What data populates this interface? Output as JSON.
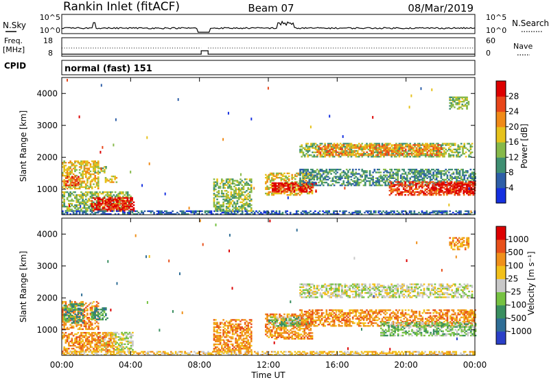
{
  "header": {
    "site": "Rankin Inlet (fitACF)",
    "beam": "Beam 07",
    "date": "08/Mar/2019"
  },
  "aux": {
    "nsky_label": "N.Sky",
    "nsearch_label": "N.Search",
    "freq_label_top": "Freq.",
    "freq_label_bottom": "[MHz]",
    "nave_label": "Nave",
    "cpid_label": "CPID",
    "cpid_value": "normal (fast) 151",
    "noise_ticks_left": [
      "10^5",
      "10^0"
    ],
    "noise_ticks_right": [
      "10^5",
      "10^0"
    ],
    "freq_ticks_left": [
      "18",
      "8"
    ],
    "nave_ticks_right": [
      "60",
      "0"
    ]
  },
  "chart_data": [
    {
      "type": "heatmap",
      "name": "power",
      "ylabel": "Slant Range [km]",
      "yticks": [
        "1000",
        "2000",
        "3000",
        "4000"
      ],
      "ylim": [
        200,
        4500
      ],
      "xlim": [
        0,
        24
      ],
      "xticks": [
        "00:00",
        "04:00",
        "08:00",
        "12:00",
        "16:00",
        "20:00",
        "00:00"
      ],
      "colorbar": {
        "label": "Power [dB]",
        "ticks": [
          "4",
          "8",
          "12",
          "16",
          "20",
          "24",
          "28"
        ],
        "colors": [
          "#1530e0",
          "#2e5fa8",
          "#3f8f72",
          "#86b94a",
          "#e6c21c",
          "#f08a18",
          "#e8461a",
          "#dd0000"
        ]
      },
      "bands": [
        {
          "t0": 0.0,
          "t1": 2.1,
          "r0": 1000,
          "r1": 1900,
          "level": 4
        },
        {
          "t0": 0.2,
          "t1": 1.0,
          "r0": 1100,
          "r1": 1400,
          "level": 6
        },
        {
          "t0": 0.0,
          "t1": 4.0,
          "r0": 300,
          "r1": 900,
          "level": 3
        },
        {
          "t0": 1.7,
          "t1": 4.2,
          "r0": 300,
          "r1": 750,
          "level": 7
        },
        {
          "t0": 2.4,
          "t1": 3.8,
          "r0": 350,
          "r1": 650,
          "level": 6
        },
        {
          "t0": 1.8,
          "t1": 2.6,
          "r0": 1500,
          "r1": 1700,
          "level": 3
        },
        {
          "t0": 2.5,
          "t1": 3.2,
          "r0": 1200,
          "r1": 1400,
          "level": 4
        },
        {
          "t0": 0.0,
          "t1": 24.0,
          "r0": 200,
          "r1": 330,
          "level": 1
        },
        {
          "t0": 8.8,
          "t1": 11.0,
          "r0": 300,
          "r1": 1300,
          "level": 3
        },
        {
          "t0": 11.8,
          "t1": 14.5,
          "r0": 800,
          "r1": 1500,
          "level": 4
        },
        {
          "t0": 12.2,
          "t1": 14.8,
          "r0": 900,
          "r1": 1200,
          "level": 7
        },
        {
          "t0": 13.8,
          "t1": 23.8,
          "r0": 2000,
          "r1": 2450,
          "level": 3
        },
        {
          "t0": 14.8,
          "t1": 22.0,
          "r0": 2050,
          "r1": 2400,
          "level": 5
        },
        {
          "t0": 13.8,
          "t1": 24.0,
          "r0": 1100,
          "r1": 1600,
          "level": 2
        },
        {
          "t0": 19.0,
          "t1": 24.0,
          "r0": 800,
          "r1": 1250,
          "level": 6
        },
        {
          "t0": 21.5,
          "t1": 24.0,
          "r0": 850,
          "r1": 1200,
          "level": 7
        },
        {
          "t0": 22.5,
          "t1": 23.6,
          "r0": 3500,
          "r1": 3900,
          "level": 3
        }
      ]
    },
    {
      "type": "heatmap",
      "name": "velocity",
      "ylabel": "Slant Range [km]",
      "yticks": [
        "1000",
        "2000",
        "3000",
        "4000"
      ],
      "ylim": [
        200,
        4500
      ],
      "xlim": [
        0,
        24
      ],
      "xticks": [
        "00:00",
        "04:00",
        "08:00",
        "12:00",
        "16:00",
        "20:00",
        "00:00"
      ],
      "xlabel": "Time UT",
      "colorbar": {
        "label": "Velocity [m s⁻¹]",
        "ticks": [
          "1000",
          "500",
          "100",
          "25",
          "-25",
          "-100",
          "-500",
          "-1000"
        ],
        "colors": [
          "#2a3fc8",
          "#2f6e96",
          "#3a8f60",
          "#76c242",
          "#c8c8c8",
          "#f2c01a",
          "#f0901a",
          "#e8501a",
          "#dd0000"
        ]
      },
      "bands": [
        {
          "t0": 0.0,
          "t1": 2.1,
          "r0": 1000,
          "r1": 1900,
          "level": 6
        },
        {
          "t0": 0.1,
          "t1": 1.2,
          "r0": 1200,
          "r1": 1800,
          "level": 2
        },
        {
          "t0": 1.7,
          "t1": 2.6,
          "r0": 1300,
          "r1": 1700,
          "level": 2
        },
        {
          "t0": 2.0,
          "t1": 4.1,
          "r0": 350,
          "r1": 900,
          "level": 4
        },
        {
          "t0": 0.0,
          "t1": 3.0,
          "r0": 300,
          "r1": 900,
          "level": 6
        },
        {
          "t0": 8.8,
          "t1": 11.0,
          "r0": 300,
          "r1": 1300,
          "level": 6
        },
        {
          "t0": 11.8,
          "t1": 14.5,
          "r0": 700,
          "r1": 1500,
          "level": 6
        },
        {
          "t0": 12.0,
          "t1": 14.5,
          "r0": 1100,
          "r1": 1400,
          "level": 3
        },
        {
          "t0": 13.8,
          "t1": 23.8,
          "r0": 2000,
          "r1": 2450,
          "level": 4
        },
        {
          "t0": 13.8,
          "t1": 24.0,
          "r0": 1100,
          "r1": 1600,
          "level": 6
        },
        {
          "t0": 18.5,
          "t1": 24.0,
          "r0": 800,
          "r1": 1250,
          "level": 3
        },
        {
          "t0": 0.0,
          "t1": 24.0,
          "r0": 200,
          "r1": 330,
          "level": 5
        },
        {
          "t0": 22.5,
          "t1": 23.6,
          "r0": 3500,
          "r1": 3900,
          "level": 6
        }
      ]
    }
  ]
}
